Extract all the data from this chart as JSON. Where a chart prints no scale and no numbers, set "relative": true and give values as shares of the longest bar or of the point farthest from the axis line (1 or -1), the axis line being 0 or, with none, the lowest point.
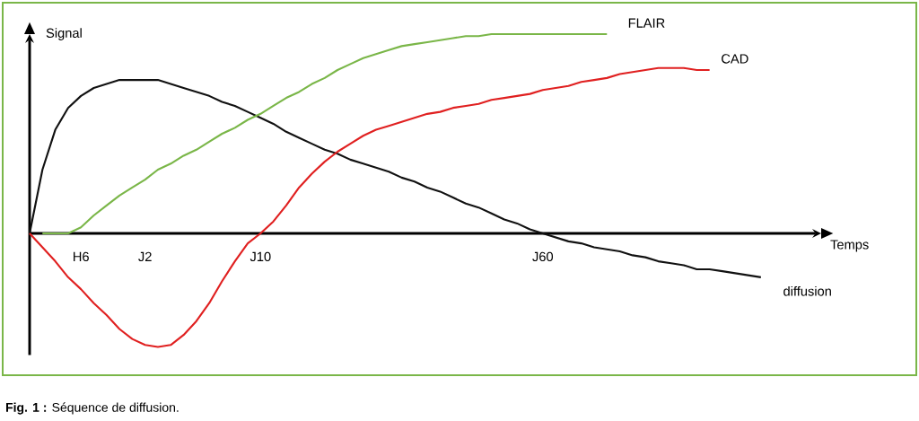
{
  "chart_data": {
    "type": "line",
    "relative": true,
    "xlabel": "Temps",
    "ylabel": "Signal",
    "categories": [
      null,
      null,
      null,
      null,
      "H6",
      null,
      null,
      null,
      null,
      "J2",
      null,
      null,
      null,
      null,
      null,
      null,
      null,
      null,
      "J10",
      null,
      null,
      null,
      null,
      null,
      null,
      null,
      null,
      null,
      null,
      null,
      null,
      null,
      null,
      null,
      null,
      null,
      null,
      null,
      null,
      null,
      "J60",
      null,
      null,
      null,
      null,
      null,
      null,
      null,
      null,
      null,
      null,
      null,
      null,
      null,
      null,
      null,
      null,
      null,
      null,
      null,
      null,
      null
    ],
    "series": [
      {
        "name": "diffusion",
        "color": "#111111",
        "values": [
          0,
          0.32,
          0.52,
          0.63,
          0.69,
          0.73,
          0.75,
          0.77,
          0.77,
          0.77,
          0.77,
          0.75,
          0.73,
          0.71,
          0.69,
          0.66,
          0.64,
          0.61,
          0.58,
          0.55,
          0.51,
          0.48,
          0.45,
          0.42,
          0.4,
          0.37,
          0.35,
          0.33,
          0.31,
          0.28,
          0.26,
          0.23,
          0.21,
          0.18,
          0.15,
          0.13,
          0.1,
          0.07,
          0.05,
          0.02,
          0,
          -0.02,
          -0.04,
          -0.05,
          -0.07,
          -0.08,
          -0.09,
          -0.11,
          -0.12,
          -0.14,
          -0.15,
          -0.16,
          -0.18,
          -0.18,
          -0.19,
          -0.2,
          -0.21,
          -0.22,
          null,
          null,
          null,
          null
        ]
      },
      {
        "name": "FLAIR",
        "color": "#7ab648",
        "values": [
          null,
          0,
          0,
          0,
          0.03,
          0.09,
          0.14,
          0.19,
          0.23,
          0.27,
          0.32,
          0.35,
          0.39,
          0.42,
          0.46,
          0.5,
          0.53,
          0.57,
          0.6,
          0.64,
          0.68,
          0.71,
          0.75,
          0.78,
          0.82,
          0.85,
          0.88,
          0.9,
          0.92,
          0.94,
          0.95,
          0.96,
          0.97,
          0.98,
          0.99,
          0.99,
          1,
          1,
          1,
          1,
          1,
          1,
          1,
          1,
          1,
          1,
          null,
          null,
          null,
          null,
          null,
          null,
          null,
          null,
          null,
          null,
          null,
          null,
          null,
          null,
          null,
          null
        ]
      },
      {
        "name": "CAD",
        "color": "#e02020",
        "values": [
          0,
          -0.07,
          -0.14,
          -0.22,
          -0.28,
          -0.35,
          -0.41,
          -0.48,
          -0.53,
          -0.56,
          -0.57,
          -0.56,
          -0.51,
          -0.44,
          -0.35,
          -0.24,
          -0.14,
          -0.05,
          0,
          0.06,
          0.14,
          0.23,
          0.3,
          0.36,
          0.41,
          0.45,
          0.49,
          0.52,
          0.54,
          0.56,
          0.58,
          0.6,
          0.61,
          0.63,
          0.64,
          0.65,
          0.67,
          0.68,
          0.69,
          0.7,
          0.72,
          0.73,
          0.74,
          0.76,
          0.77,
          0.78,
          0.8,
          0.81,
          0.82,
          0.83,
          0.83,
          0.83,
          0.82,
          0.82,
          null,
          null,
          null,
          null,
          null,
          null,
          null,
          null
        ]
      }
    ],
    "annotations": [
      "**Fig. 1 :** Séquence de diffusion."
    ]
  }
}
